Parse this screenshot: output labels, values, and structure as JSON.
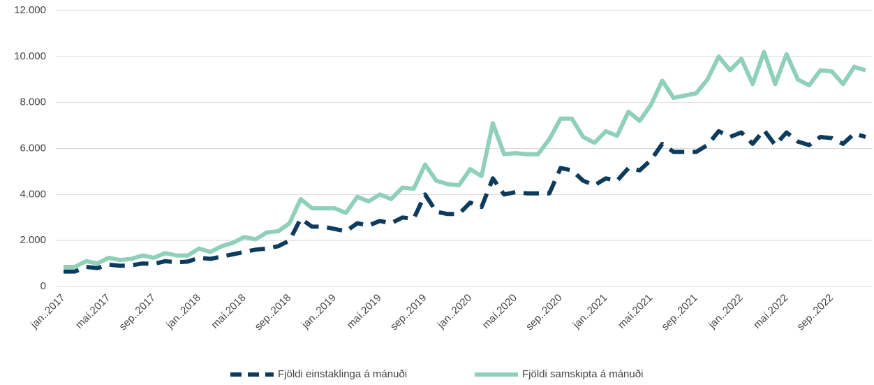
{
  "chart_data": {
    "type": "line",
    "categories": [
      "jan..2017",
      null,
      null,
      null,
      "maí.2017",
      null,
      null,
      null,
      "sep..2017",
      null,
      null,
      null,
      "jan..2018",
      null,
      null,
      null,
      "maí.2018",
      null,
      null,
      null,
      "sep..2018",
      null,
      null,
      null,
      "jan..2019",
      null,
      null,
      null,
      "maí.2019",
      null,
      null,
      null,
      "sep..2019",
      null,
      null,
      null,
      "jan..2020",
      null,
      null,
      null,
      "maí.2020",
      null,
      null,
      null,
      "sep..2020",
      null,
      null,
      null,
      "jan..2021",
      null,
      null,
      null,
      "maí.2021",
      null,
      null,
      null,
      "sep..2021",
      null,
      null,
      null,
      "jan..2022",
      null,
      null,
      null,
      "maí.2022",
      null,
      null,
      null,
      "sep..2022",
      null,
      null,
      null
    ],
    "series": [
      {
        "name": "Fjöldi einstaklinga á mánuði",
        "color": "#0d3b5e",
        "dashed": true,
        "values": [
          650,
          650,
          850,
          800,
          950,
          900,
          920,
          1000,
          980,
          1100,
          1050,
          1080,
          1250,
          1200,
          1300,
          1400,
          1500,
          1600,
          1650,
          1750,
          2000,
          2950,
          2600,
          2600,
          2500,
          2400,
          2750,
          2650,
          2850,
          2750,
          3000,
          2950,
          4000,
          3250,
          3150,
          3150,
          3650,
          3450,
          4700,
          4000,
          4100,
          4050,
          4050,
          4050,
          5150,
          5050,
          4600,
          4400,
          4700,
          4600,
          5150,
          5050,
          5500,
          6200,
          5850,
          5850,
          5850,
          6150,
          6750,
          6500,
          6700,
          6200,
          6800,
          6150,
          6700,
          6300,
          6150,
          6500,
          6450,
          6200,
          6650,
          6500
        ]
      },
      {
        "name": "Fjöldi samskipta á mánuði",
        "color": "#8fd0b8",
        "dashed": false,
        "values": [
          850,
          850,
          1100,
          1000,
          1250,
          1150,
          1200,
          1350,
          1250,
          1450,
          1350,
          1350,
          1650,
          1500,
          1750,
          1900,
          2150,
          2050,
          2350,
          2400,
          2750,
          3800,
          3400,
          3400,
          3400,
          3200,
          3900,
          3700,
          4000,
          3800,
          4300,
          4250,
          5300,
          4600,
          4450,
          4400,
          5100,
          4800,
          7100,
          5750,
          5800,
          5750,
          5750,
          6400,
          7300,
          7300,
          6500,
          6250,
          6750,
          6550,
          7600,
          7200,
          7900,
          8950,
          8200,
          8300,
          8400,
          9000,
          10000,
          9400,
          9900,
          8800,
          10200,
          8800,
          10100,
          9000,
          8750,
          9400,
          9350,
          8800,
          9550,
          9400
        ]
      }
    ],
    "ylim": [
      0,
      12000
    ],
    "yticks": [
      0,
      {
        "value": 2000,
        "label": "2.000"
      },
      {
        "value": 4000,
        "label": "4.000"
      },
      {
        "value": 6000,
        "label": "6.000"
      },
      {
        "value": 8000,
        "label": "8.000"
      },
      {
        "value": 10000,
        "label": "10.000"
      },
      {
        "value": 12000,
        "label": "12.000"
      }
    ],
    "grid": true,
    "legend": "bottom"
  }
}
